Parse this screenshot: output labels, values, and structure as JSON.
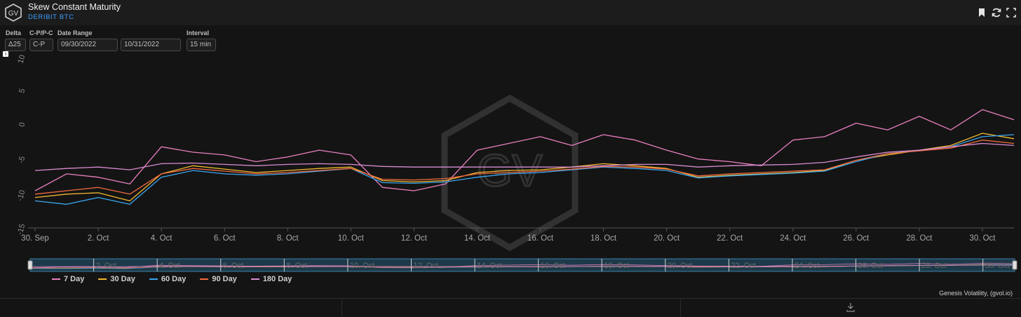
{
  "header": {
    "logo_text": "GV",
    "title": "Skew Constant Maturity",
    "subtitle": "DERIBIT BTC",
    "icons": [
      "bookmark-icon",
      "refresh-icon",
      "maximize-icon"
    ]
  },
  "controls": {
    "delta": {
      "label": "Delta",
      "value": "Δ25"
    },
    "cp": {
      "label": "C-P/P-C",
      "value": "C-P"
    },
    "date_range": {
      "label": "Date Range",
      "start": "09/30/2022",
      "end": "10/31/2022"
    },
    "interval": {
      "label": "Interval",
      "value": "15 min"
    }
  },
  "expand_glyph": "›",
  "watermark": "GV",
  "credit": "Genesis Volatility, (gvol.io)",
  "footer_icon": "download-icon",
  "colors": {
    "background": "#141414",
    "7 Day": "#e87fbf",
    "30 Day": "#f2b830",
    "60 Day": "#3aa6ef",
    "90 Day": "#f06a40",
    "180 Day": "#d98cd2"
  },
  "chart_data": {
    "type": "line",
    "title": "",
    "xlabel": "",
    "ylabel": "",
    "ylim": [
      -15,
      10
    ],
    "yticks": [
      10,
      5,
      0,
      -5,
      -10,
      -15
    ],
    "xticks": [
      "30. Sep",
      "2. Oct",
      "4. Oct",
      "6. Oct",
      "8. Oct",
      "10. Oct",
      "12. Oct",
      "14. Oct",
      "16. Oct",
      "18. Oct",
      "20. Oct",
      "22. Oct",
      "24. Oct",
      "26. Oct",
      "28. Oct",
      "30. Oct"
    ],
    "navigator_ticks": [
      "2. Oct",
      "4. Oct",
      "6. Oct",
      "8. Oct",
      "10. Oct",
      "12. Oct",
      "14. Oct",
      "16. Oct",
      "18. Oct",
      "20. Oct",
      "22. Oct",
      "24. Oct",
      "26. Oct",
      "28. Oct",
      "30. Oct"
    ],
    "grid": false,
    "legend_position": "bottom-left",
    "x": [
      "09/30",
      "10/01",
      "10/02",
      "10/03",
      "10/04",
      "10/05",
      "10/06",
      "10/07",
      "10/08",
      "10/09",
      "10/10",
      "10/11",
      "10/12",
      "10/13",
      "10/14",
      "10/15",
      "10/16",
      "10/17",
      "10/18",
      "10/19",
      "10/20",
      "10/21",
      "10/22",
      "10/23",
      "10/24",
      "10/25",
      "10/26",
      "10/27",
      "10/28",
      "10/29",
      "10/30",
      "10/31"
    ],
    "series": [
      {
        "name": "7 Day",
        "values": [
          -9.5,
          -7.0,
          -7.5,
          -8.5,
          -3.0,
          -3.8,
          -4.2,
          -5.2,
          -4.5,
          -3.5,
          -4.2,
          -9.0,
          -9.5,
          -8.5,
          -3.5,
          -2.5,
          -1.5,
          -2.8,
          -1.2,
          -2.0,
          -3.5,
          -4.8,
          -5.2,
          -5.8,
          -2.0,
          -1.5,
          0.5,
          -0.5,
          1.5,
          -0.5,
          2.5,
          1.0
        ]
      },
      {
        "name": "30 Day",
        "values": [
          -10.5,
          -10.0,
          -9.8,
          -11.0,
          -7.0,
          -5.8,
          -6.3,
          -6.8,
          -6.5,
          -6.2,
          -6.0,
          -8.0,
          -8.2,
          -8.0,
          -6.8,
          -6.5,
          -6.4,
          -6.0,
          -5.5,
          -5.8,
          -6.2,
          -7.5,
          -7.2,
          -7.0,
          -6.8,
          -6.5,
          -5.0,
          -4.2,
          -3.5,
          -2.8,
          -1.0,
          -1.8
        ]
      },
      {
        "name": "60 Day",
        "values": [
          -11.0,
          -11.5,
          -10.5,
          -11.5,
          -7.5,
          -6.5,
          -7.0,
          -7.2,
          -7.0,
          -6.6,
          -6.2,
          -8.3,
          -8.4,
          -8.2,
          -7.5,
          -7.0,
          -6.8,
          -6.4,
          -6.0,
          -6.2,
          -6.5,
          -7.6,
          -7.3,
          -7.1,
          -6.9,
          -6.6,
          -5.2,
          -4.0,
          -3.5,
          -3.0,
          -1.5,
          -1.2
        ]
      },
      {
        "name": "90 Day",
        "values": [
          -10.0,
          -9.5,
          -9.0,
          -10.0,
          -7.0,
          -6.2,
          -6.6,
          -7.0,
          -6.8,
          -6.5,
          -6.2,
          -7.8,
          -7.9,
          -7.7,
          -7.0,
          -6.8,
          -6.6,
          -6.3,
          -5.9,
          -6.0,
          -6.3,
          -7.3,
          -7.0,
          -6.8,
          -6.6,
          -6.4,
          -5.0,
          -4.0,
          -3.6,
          -3.2,
          -2.0,
          -2.5
        ]
      },
      {
        "name": "180 Day",
        "values": [
          -6.5,
          -6.2,
          -6.0,
          -6.4,
          -5.5,
          -5.4,
          -5.6,
          -5.8,
          -5.6,
          -5.5,
          -5.6,
          -5.9,
          -6.0,
          -6.0,
          -6.0,
          -6.0,
          -6.0,
          -6.0,
          -5.8,
          -5.6,
          -5.6,
          -6.0,
          -5.8,
          -5.7,
          -5.6,
          -5.3,
          -4.5,
          -3.8,
          -3.5,
          -3.0,
          -2.5,
          -2.8
        ]
      }
    ]
  }
}
